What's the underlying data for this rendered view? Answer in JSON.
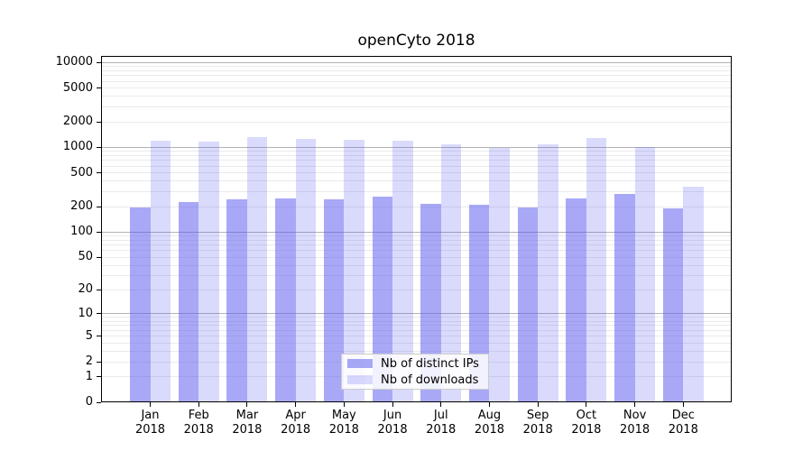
{
  "chart_data": {
    "type": "bar",
    "title": "openCyto 2018",
    "categories": [
      "Jan 2018",
      "Feb 2018",
      "Mar 2018",
      "Apr 2018",
      "May 2018",
      "Jun 2018",
      "Jul 2018",
      "Aug 2018",
      "Sep 2018",
      "Oct 2018",
      "Nov 2018",
      "Dec 2018"
    ],
    "series": [
      {
        "name": "Nb of distinct IPs",
        "color": "#5858f0",
        "alpha": 0.52,
        "values": [
          194,
          225,
          246,
          250,
          246,
          262,
          216,
          209,
          196,
          250,
          280,
          190
        ]
      },
      {
        "name": "Nb of downloads",
        "color": "#5858f0",
        "alpha": 0.22,
        "values": [
          1188,
          1160,
          1320,
          1270,
          1240,
          1210,
          1097,
          978,
          1086,
          1301,
          1019,
          341
        ]
      }
    ],
    "yscale": "log1p",
    "ylim": [
      0,
      10000
    ],
    "y_ticks": [
      0,
      1,
      2,
      5,
      10,
      20,
      50,
      100,
      200,
      500,
      1000,
      2000,
      5000,
      10000
    ],
    "grid": {
      "horizontal": true,
      "minor_log_lines": true
    },
    "legend": {
      "position": "lower center"
    },
    "colors": {
      "grid_major": "#b3b3b3",
      "grid_minor": "#eaeaea",
      "spine": "#000000",
      "text": "#000000",
      "legend_border": "#cccccc",
      "legend_bg": "#ffffff"
    }
  }
}
